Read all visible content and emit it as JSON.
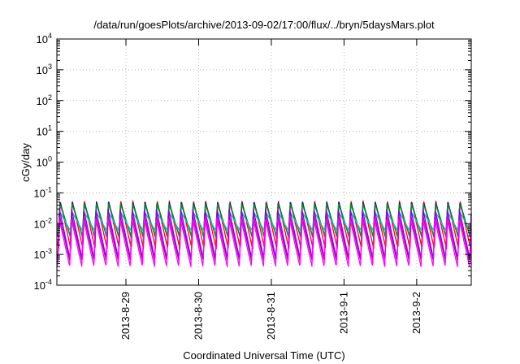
{
  "chart_data": {
    "type": "line",
    "title": "/data/run/goesPlots/archive/2013-09-02/17:00/flux/../bryn/5daysMars.plot",
    "xlabel": "Coordinated Universal Time (UTC)",
    "ylabel": "cGy/day",
    "yscale": "log",
    "ylim": [
      0.0001,
      10000
    ],
    "grid": true,
    "x_tick_labels": [
      "2013-8-29",
      "2013-8-30",
      "2013-8-31",
      "2013-9-1",
      "2013-9-2"
    ],
    "y_ticks": [
      {
        "base": "10",
        "exp": "-4"
      },
      {
        "base": "10",
        "exp": "-3"
      },
      {
        "base": "10",
        "exp": "-2"
      },
      {
        "base": "10",
        "exp": "-1"
      },
      {
        "base": "10",
        "exp": "0"
      },
      {
        "base": "10",
        "exp": "1"
      },
      {
        "base": "10",
        "exp": "2"
      },
      {
        "base": "10",
        "exp": "3"
      },
      {
        "base": "10",
        "exp": "4"
      }
    ],
    "x_start_day": -0.95,
    "x_end_day": 4.75,
    "cycles_per_day": 6,
    "series": [
      {
        "color": "#ff0000",
        "peak": 0.055,
        "trough": 0.0015
      },
      {
        "color": "#0000ff",
        "peak": 0.05,
        "trough": 0.0035
      },
      {
        "color": "#00a000",
        "peak": 0.045,
        "trough": 0.004
      },
      {
        "color": "#00c8c8",
        "peak": 0.025,
        "trough": 0.006
      },
      {
        "color": "#8000ff",
        "peak": 0.03,
        "trough": 0.0007
      },
      {
        "color": "#b000b0",
        "peak": 0.02,
        "trough": 0.0006
      },
      {
        "color": "#ff00ff",
        "peak": 0.015,
        "trough": 0.0004
      }
    ]
  }
}
